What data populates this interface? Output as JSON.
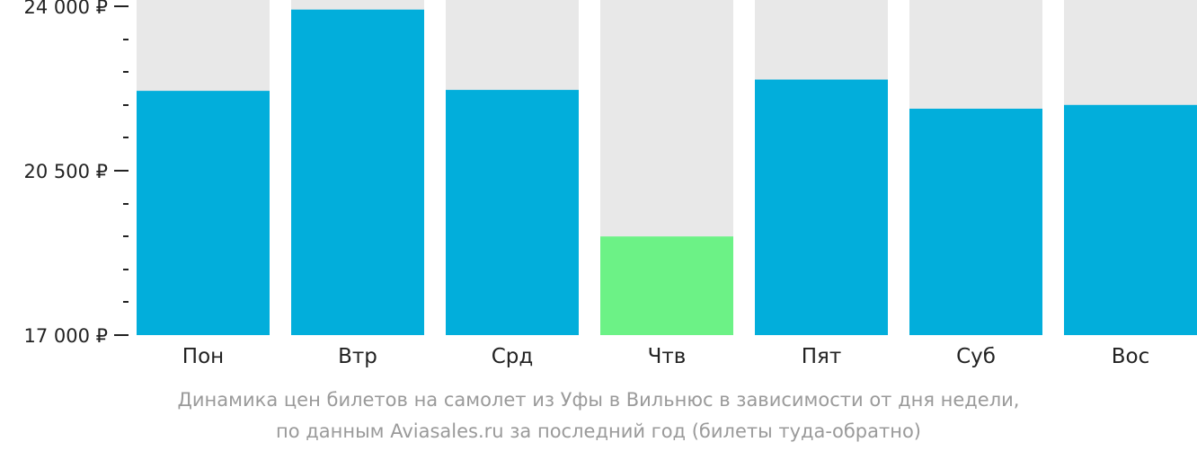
{
  "chart_data": {
    "type": "bar",
    "categories": [
      "Пон",
      "Втр",
      "Срд",
      "Чтв",
      "Пят",
      "Суб",
      "Вос"
    ],
    "values": [
      22200,
      23930,
      22220,
      19100,
      22440,
      21820,
      21900
    ],
    "ylim": [
      17000,
      24000
    ],
    "y_tick_labels": [
      "24 000 ₽",
      "20 500 ₽",
      "17 000 ₽"
    ],
    "y_tick_values": [
      24000,
      20500,
      17000
    ],
    "y_minor_step": 700,
    "highlight_index": 3,
    "colors": {
      "bar": "#02AEDB",
      "highlight": "#6CF286",
      "background_column": "#E8E8E8",
      "axis": "#222222"
    },
    "caption_line1": "Динамика цен билетов на самолет из Уфы в Вильнюс в зависимости от дня недели,",
    "caption_line2": "по данным Aviasales.ru за последний год (билеты туда-обратно)",
    "grid": false,
    "legend": "none"
  }
}
